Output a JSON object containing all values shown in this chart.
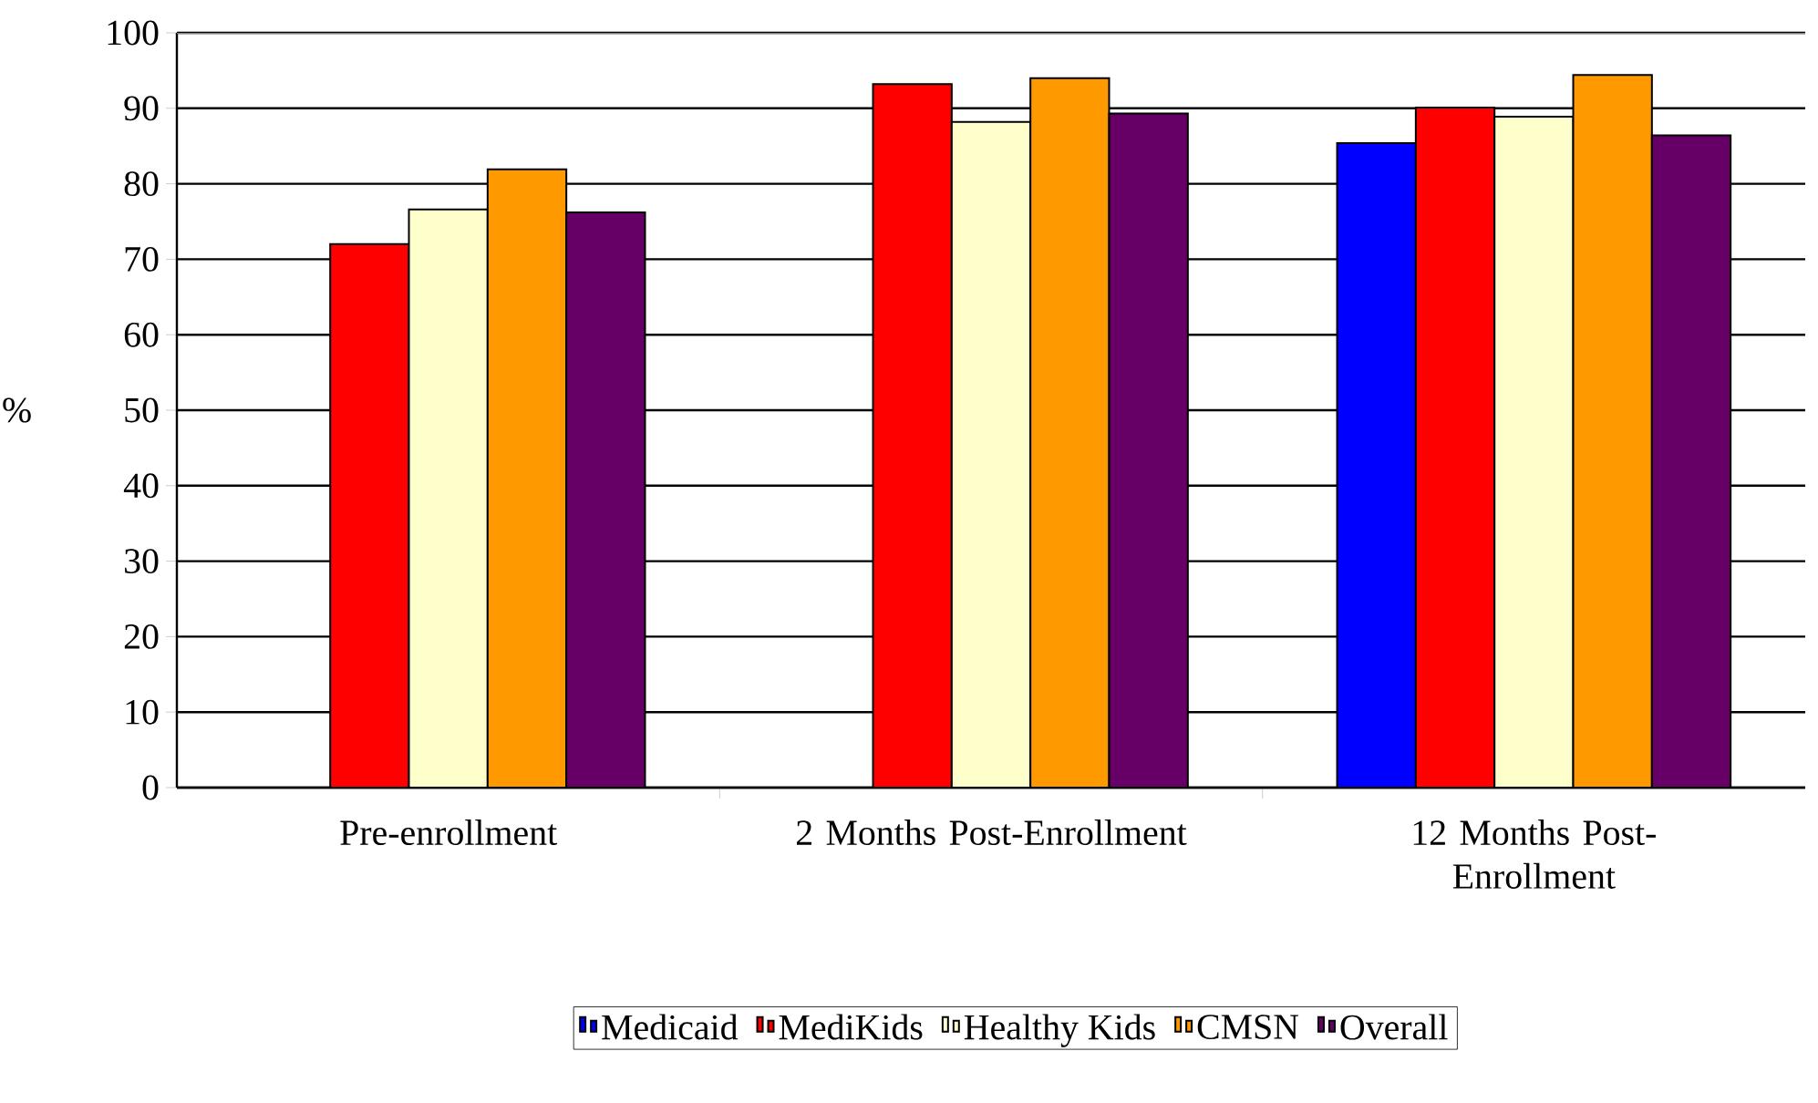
{
  "chart_data": {
    "type": "bar",
    "ylabel": "%",
    "categories": [
      "Pre-enrollment",
      "2 Months Post-Enrollment",
      "12 Months Post-Enrollment"
    ],
    "series": [
      {
        "name": "Medicaid",
        "color": "#0000ff",
        "values": [
          null,
          null,
          85.4
        ]
      },
      {
        "name": "MediKids",
        "color": "#ff0000",
        "values": [
          72.0,
          93.2,
          90.1
        ]
      },
      {
        "name": "Healthy Kids",
        "color": "#ffffcc",
        "values": [
          76.6,
          88.2,
          88.9
        ]
      },
      {
        "name": "CMSN",
        "color": "#ff9900",
        "values": [
          81.9,
          94.0,
          94.4
        ]
      },
      {
        "name": "Overall",
        "color": "#660066",
        "values": [
          76.2,
          89.3,
          86.4
        ]
      }
    ],
    "ylim": [
      0,
      100
    ],
    "yticks": [
      0,
      10,
      20,
      30,
      40,
      50,
      60,
      70,
      80,
      90,
      100
    ],
    "grid": "y",
    "legend": "bottom"
  }
}
